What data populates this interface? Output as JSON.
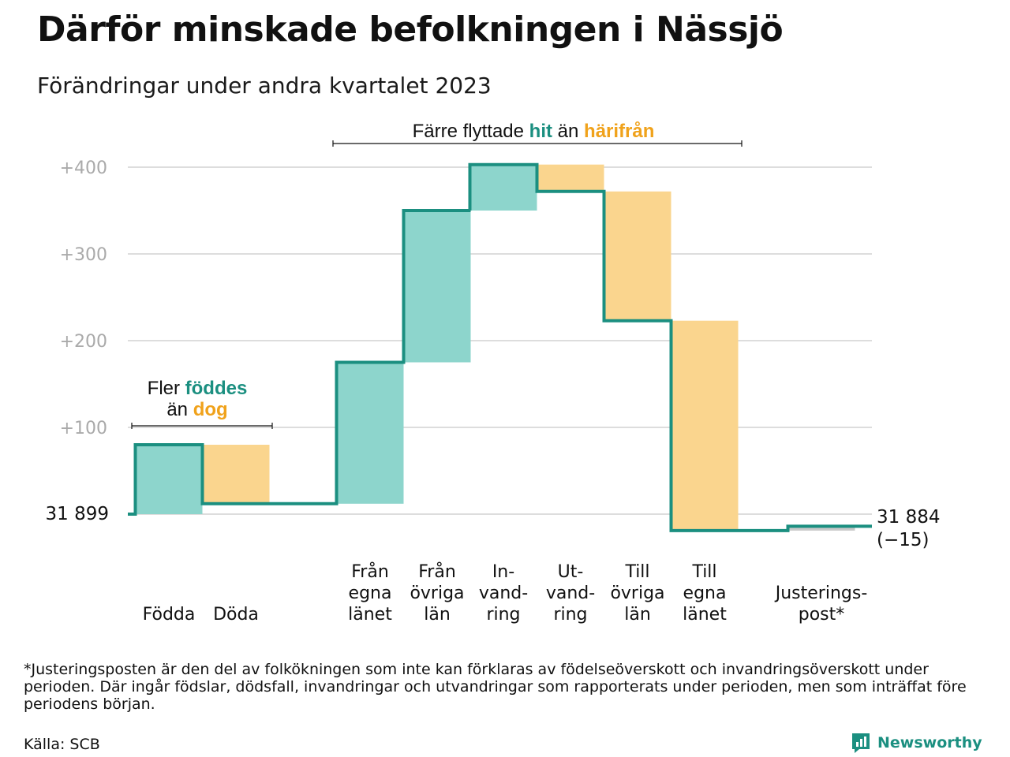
{
  "title": "Därför minskade befolkningen i Nässjö",
  "subtitle": "Förändringar under andra kvartalet 2023",
  "footnote": "*Justeringsposten är den del av folkökningen som inte kan förklaras av födelseöverskott och invandringsöverskott under perioden. Där ingår födslar, dödsfall, invandringar och utvandringar som rapporterats under perioden, men som inträffat före periodens början.",
  "source": "Källa: SCB",
  "brand": "Newsworthy",
  "icons": {
    "brand_logo": "newsworthy-logo-icon"
  },
  "colors": {
    "increase": "#8dd5cc",
    "decrease": "#fad58e",
    "line": "#1b8f80",
    "accent_text": "#f0a21b",
    "adjustment": "#c9c9c9",
    "grid": "#dddddd",
    "tick": "#aaaaaa"
  },
  "chart_data": {
    "type": "waterfall",
    "start": {
      "label": "31  899",
      "value": 31899
    },
    "end": {
      "label_line1": "31 884",
      "label_line2": "(−15)",
      "value": 31884
    },
    "y_ticks": [
      "+100",
      "+200",
      "+300",
      "+400"
    ],
    "y_tick_values": [
      100,
      200,
      300,
      400
    ],
    "ylim": [
      -25,
      420
    ],
    "steps": [
      {
        "label": "Födda",
        "change": 80
      },
      {
        "label": "Döda",
        "change": -68
      },
      {
        "label": "Från egna länet",
        "label_lines": [
          "Från",
          "egna",
          "länet"
        ],
        "change": 163
      },
      {
        "label": "Från övriga län",
        "label_lines": [
          "Från",
          "övriga",
          "län"
        ],
        "change": 175
      },
      {
        "label": "Invandring",
        "label_lines": [
          "In-",
          "vand-",
          "ring"
        ],
        "change": 53
      },
      {
        "label": "Utvandring",
        "label_lines": [
          "Ut-",
          "vand-",
          "ring"
        ],
        "change": -31
      },
      {
        "label": "Till övriga län",
        "label_lines": [
          "Till",
          "övriga",
          "län"
        ],
        "change": -149
      },
      {
        "label": "Till egna länet",
        "label_lines": [
          "Till",
          "egna",
          "länet"
        ],
        "change": -242
      },
      {
        "label": "Justeringspost*",
        "label_lines": [
          "Justerings-",
          "post*"
        ],
        "change": 5
      }
    ],
    "annotations": [
      {
        "id": "births",
        "parts": [
          [
            {
              "text": "Fler ",
              "style": "plain"
            },
            {
              "text": "föddes",
              "style": "increase"
            }
          ],
          [
            {
              "text": "än ",
              "style": "plain"
            },
            {
              "text": "dog",
              "style": "decrease"
            }
          ]
        ]
      },
      {
        "id": "migration",
        "parts": [
          [
            {
              "text": "Färre flyttade ",
              "style": "plain"
            },
            {
              "text": "hit",
              "style": "increase"
            },
            {
              "text": " än ",
              "style": "plain"
            },
            {
              "text": "härifrån",
              "style": "decrease"
            }
          ]
        ]
      }
    ]
  }
}
